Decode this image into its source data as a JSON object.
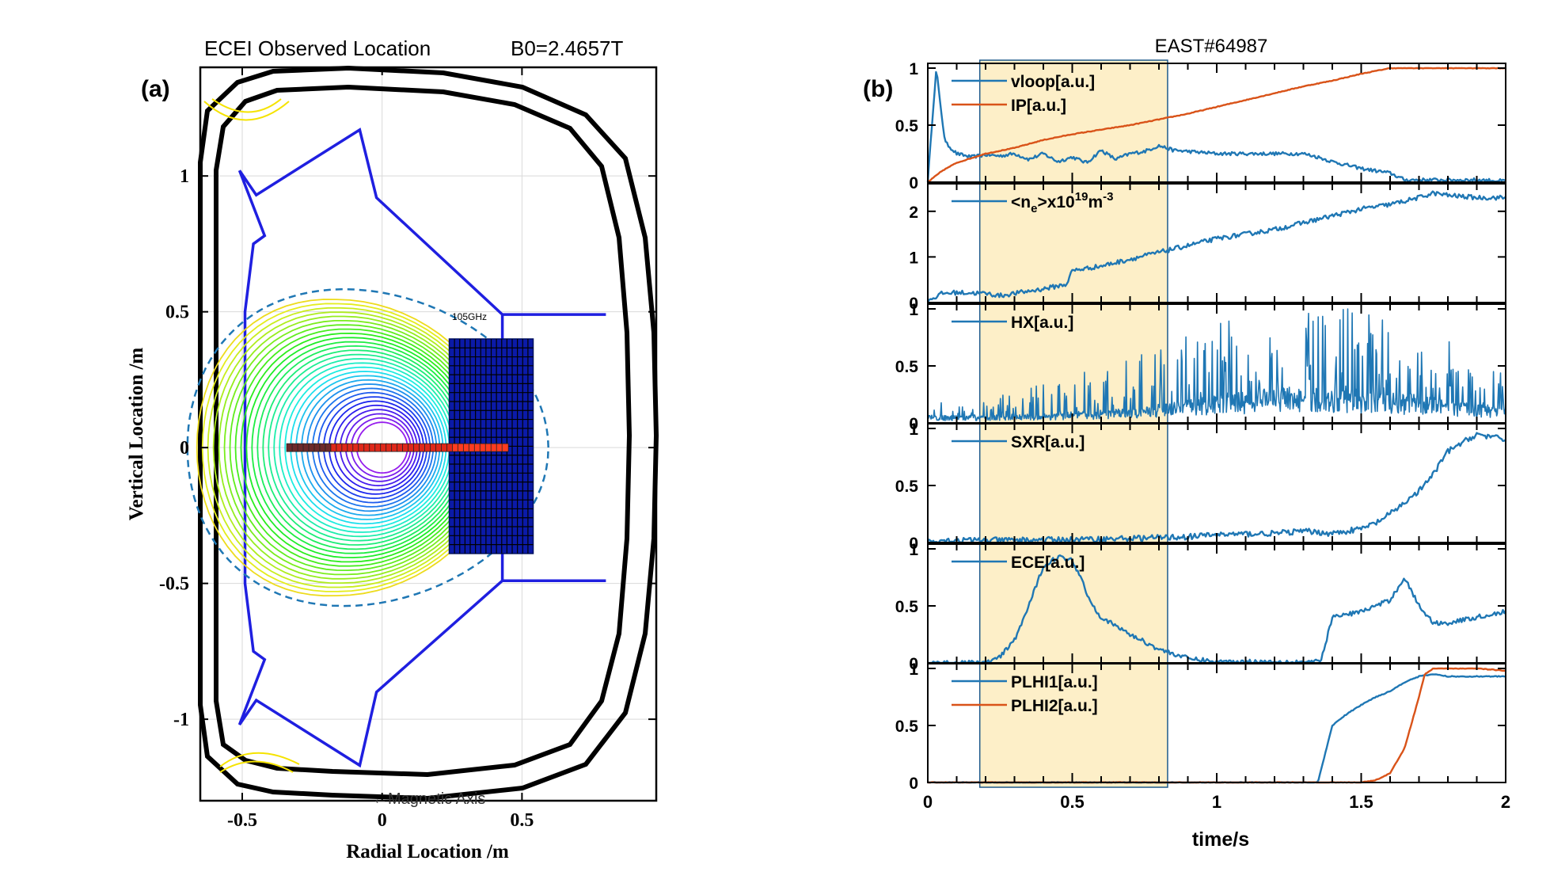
{
  "chart_data": [
    {
      "type": "diagram",
      "panel_label": "(a)",
      "title": "ECEI Observed Location",
      "title_right": "B0=2.4657T",
      "xlabel": "Radial Location  /m",
      "ylabel": "Vertical Location  /m",
      "xlim": [
        -0.65,
        0.98
      ],
      "ylim": [
        -1.3,
        1.4
      ],
      "xticks": [
        -0.5,
        0,
        0.5
      ],
      "xtick_labels": [
        "-0.5",
        "0",
        "0.5"
      ],
      "yticks": [
        -1,
        -0.5,
        0,
        0.5,
        1
      ],
      "ytick_labels": [
        "-1",
        "-0.5",
        "0",
        "0.5",
        "1"
      ],
      "annotations": {
        "freq": "105GHz",
        "axis": "←Magnetic Axis"
      },
      "magnetic_axis": [
        0.0,
        0.0
      ],
      "ecei_box": {
        "r": [
          0.24,
          0.54
        ],
        "z": [
          -0.39,
          0.4
        ]
      },
      "inner_wall": [
        [
          -0.51,
          1.02
        ],
        [
          -0.42,
          0.78
        ],
        [
          -0.46,
          0.75
        ],
        [
          -0.49,
          0.5
        ],
        [
          -0.49,
          -0.5
        ],
        [
          -0.46,
          -0.75
        ],
        [
          -0.42,
          -0.78
        ],
        [
          -0.51,
          -1.02
        ],
        [
          -0.45,
          -0.93
        ],
        [
          -0.08,
          -1.17
        ],
        [
          -0.02,
          -0.9
        ],
        [
          0.43,
          -0.49
        ],
        [
          0.8,
          -0.49
        ],
        [
          0.43,
          -0.49
        ],
        [
          -0.02,
          -0.9
        ],
        [
          0.43,
          -0.49
        ],
        [
          0.43,
          0.49
        ],
        [
          0.8,
          0.49
        ],
        [
          0.43,
          0.49
        ],
        [
          -0.02,
          0.92
        ],
        [
          -0.08,
          1.17
        ],
        [
          -0.45,
          0.93
        ],
        [
          -0.51,
          1.02
        ]
      ],
      "channel_row": {
        "z": 0.0,
        "r_start": -0.33,
        "r_end": 0.44,
        "count": 40
      }
    },
    {
      "type": "line",
      "panel_label": "(b)",
      "title": "EAST#64987",
      "xlabel": "time/s",
      "xlim": [
        0,
        2
      ],
      "xticks": [
        0,
        0.5,
        1,
        1.5,
        2
      ],
      "xtick_labels": [
        "0",
        "0.5",
        "1",
        "1.5",
        "2"
      ],
      "highlight_span": [
        0.18,
        0.83
      ],
      "panels": [
        {
          "ylim": [
            0,
            1
          ],
          "yticks": [
            0,
            0.5,
            1
          ],
          "ytick_labels": [
            "0",
            "0.5",
            "1"
          ],
          "series": [
            {
              "name": "vloop[a.u.]",
              "color": "#1f77b4",
              "noise": 0.015,
              "x": [
                0,
                0.02,
                0.03,
                0.04,
                0.06,
                0.1,
                0.15,
                0.2,
                0.25,
                0.3,
                0.35,
                0.4,
                0.45,
                0.5,
                0.55,
                0.6,
                0.65,
                0.7,
                0.75,
                0.8,
                0.85,
                0.9,
                1.0,
                1.1,
                1.2,
                1.3,
                1.35,
                1.4,
                1.5,
                1.6,
                1.65,
                1.7,
                1.8,
                1.9,
                2.0
              ],
              "y": [
                0,
                0.7,
                1.0,
                0.75,
                0.35,
                0.25,
                0.22,
                0.24,
                0.23,
                0.25,
                0.2,
                0.25,
                0.18,
                0.22,
                0.17,
                0.28,
                0.2,
                0.25,
                0.27,
                0.32,
                0.28,
                0.27,
                0.25,
                0.25,
                0.25,
                0.25,
                0.22,
                0.18,
                0.12,
                0.08,
                0.02,
                0.02,
                0.02,
                0.02,
                0.01
              ]
            },
            {
              "name": "IP[a.u.]",
              "color": "#d95319",
              "noise": 0.003,
              "x": [
                0,
                0.05,
                0.1,
                0.2,
                0.3,
                0.4,
                0.5,
                0.6,
                0.7,
                0.8,
                0.9,
                1.0,
                1.1,
                1.2,
                1.3,
                1.4,
                1.5,
                1.6,
                1.7,
                1.8,
                1.9,
                2.0
              ],
              "y": [
                0,
                0.1,
                0.17,
                0.25,
                0.3,
                0.37,
                0.42,
                0.46,
                0.5,
                0.55,
                0.6,
                0.66,
                0.72,
                0.78,
                0.84,
                0.89,
                0.95,
                1.0,
                1.0,
                1.0,
                1.0,
                1.0
              ]
            }
          ]
        },
        {
          "ylim": [
            0,
            2.5
          ],
          "yticks": [
            0,
            1,
            2
          ],
          "ytick_labels": [
            "0",
            "1",
            "2"
          ],
          "label_main": "<n",
          "label_sub": "e",
          "label_mid": ">x10",
          "label_sup": "19",
          "label_unit": "m",
          "label_sup2": "-3",
          "series": [
            {
              "name": "<ne>x1019m-3",
              "color": "#1f77b4",
              "noise": 0.02,
              "x": [
                0,
                0.02,
                0.05,
                0.1,
                0.2,
                0.25,
                0.3,
                0.4,
                0.48,
                0.5,
                0.6,
                0.7,
                0.8,
                0.9,
                1.0,
                1.1,
                1.2,
                1.3,
                1.4,
                1.5,
                1.6,
                1.7,
                1.75,
                1.8,
                1.9,
                2.0
              ],
              "y": [
                0.05,
                0.1,
                0.2,
                0.22,
                0.2,
                0.15,
                0.2,
                0.3,
                0.4,
                0.7,
                0.8,
                0.95,
                1.1,
                1.25,
                1.4,
                1.5,
                1.6,
                1.75,
                1.9,
                2.05,
                2.15,
                2.3,
                2.4,
                2.35,
                2.3,
                2.3
              ]
            }
          ]
        },
        {
          "ylim": [
            0,
            1
          ],
          "yticks": [
            0,
            0.5,
            1
          ],
          "ytick_labels": [
            "0",
            "0.5",
            "1"
          ],
          "series": [
            {
              "name": "HX[a.u.]",
              "color": "#1f77b4",
              "style": "spiky",
              "x": [
                0,
                0.2,
                0.4,
                0.6,
                0.8,
                1.0,
                1.2,
                1.4,
                1.6,
                1.8,
                2.0
              ],
              "y": [
                0.05,
                0.05,
                0.06,
                0.08,
                0.12,
                0.18,
                0.22,
                0.22,
                0.2,
                0.15,
                0.1
              ],
              "spike": [
                0.1,
                0.15,
                0.3,
                0.45,
                0.55,
                0.7,
                0.85,
                0.9,
                0.7,
                0.55,
                0.35
              ]
            }
          ]
        },
        {
          "ylim": [
            0,
            1
          ],
          "yticks": [
            0,
            0.5,
            1
          ],
          "ytick_labels": [
            "0",
            "0.5",
            "1"
          ],
          "series": [
            {
              "name": "SXR[a.u.]",
              "color": "#1f77b4",
              "noise": 0.025,
              "x": [
                0,
                0.3,
                0.6,
                0.9,
                1.0,
                1.2,
                1.3,
                1.4,
                1.5,
                1.55,
                1.6,
                1.7,
                1.75,
                1.8,
                1.9,
                2.0
              ],
              "y": [
                0.02,
                0.02,
                0.03,
                0.05,
                0.07,
                0.08,
                0.1,
                0.08,
                0.12,
                0.17,
                0.25,
                0.45,
                0.6,
                0.8,
                0.95,
                0.9
              ]
            }
          ]
        },
        {
          "ylim": [
            0,
            1
          ],
          "yticks": [
            0,
            0.5,
            1
          ],
          "ytick_labels": [
            "0",
            "0.5",
            "1"
          ],
          "series": [
            {
              "name": "ECE[a.u.]",
              "color": "#1f77b4",
              "noise": 0.02,
              "x": [
                0,
                0.2,
                0.25,
                0.3,
                0.35,
                0.4,
                0.45,
                0.5,
                0.53,
                0.56,
                0.6,
                0.7,
                0.8,
                0.9,
                1.0,
                1.3,
                1.36,
                1.4,
                1.5,
                1.55,
                1.6,
                1.65,
                1.7,
                1.75,
                1.8,
                1.9,
                2.0
              ],
              "y": [
                0,
                0,
                0.05,
                0.2,
                0.5,
                0.85,
                0.93,
                0.9,
                0.75,
                0.55,
                0.4,
                0.25,
                0.12,
                0.04,
                0.01,
                0.01,
                0.01,
                0.4,
                0.45,
                0.5,
                0.55,
                0.75,
                0.5,
                0.35,
                0.35,
                0.4,
                0.45
              ]
            }
          ]
        },
        {
          "ylim": [
            0,
            1
          ],
          "yticks": [
            0,
            0.5,
            1
          ],
          "ytick_labels": [
            "0",
            "0.5",
            "1"
          ],
          "series": [
            {
              "name": "PLHI1[a.u.]",
              "color": "#1f77b4",
              "noise": 0.004,
              "x": [
                0,
                1.35,
                1.37,
                1.4,
                1.45,
                1.5,
                1.55,
                1.6,
                1.65,
                1.7,
                1.75,
                1.8,
                1.9,
                2.0
              ],
              "y": [
                0,
                0,
                0.2,
                0.5,
                0.6,
                0.68,
                0.75,
                0.8,
                0.88,
                0.93,
                0.95,
                0.93,
                0.93,
                0.93
              ]
            },
            {
              "name": "PLHI2[a.u.]",
              "color": "#d95319",
              "noise": 0.003,
              "x": [
                0,
                1.5,
                1.55,
                1.6,
                1.65,
                1.7,
                1.72,
                1.75,
                1.8,
                1.9,
                2.0
              ],
              "y": [
                0,
                0,
                0.02,
                0.08,
                0.3,
                0.75,
                0.95,
                1.0,
                1.0,
                1.0,
                0.98
              ]
            }
          ]
        }
      ]
    }
  ]
}
